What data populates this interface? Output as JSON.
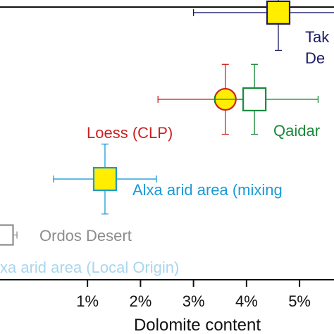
{
  "chart_data": {
    "type": "scatter",
    "title": "",
    "xlabel": "Dolomite content",
    "ylabel": "",
    "xlim": [
      -0.0065,
      0.0565
    ],
    "x_ticks": [
      {
        "value": 0.01,
        "label": "1%"
      },
      {
        "value": 0.02,
        "label": "2%"
      },
      {
        "value": 0.03,
        "label": "3%"
      },
      {
        "value": 0.04,
        "label": "4%"
      },
      {
        "value": 0.05,
        "label": "5%"
      }
    ],
    "grid": false,
    "points": [
      {
        "id": "taklimakan",
        "label_lines": [
          "Tak",
          "De"
        ],
        "x": 0.046,
        "y": 95.5,
        "x_err": [
          0.016,
          0.012
        ],
        "y_err": [
          13.5,
          13.5
        ],
        "marker": "square",
        "fill": "#ffee00",
        "stroke": "#1a1a66",
        "label_color": "#1a1a66"
      },
      {
        "id": "loess",
        "label_lines": [
          "Loess (CLP)"
        ],
        "x": 0.036,
        "y": 64.5,
        "x_err": [
          0.0127,
          0.0043
        ],
        "y_err": [
          12.5,
          12.5
        ],
        "marker": "circle",
        "fill": "#ffee00",
        "stroke": "#cc2222",
        "label_color": "#cc2222"
      },
      {
        "id": "qaidam",
        "label_lines": [
          "Qaidar"
        ],
        "x": 0.0415,
        "y": 64.5,
        "x_err": [
          0.0075,
          0.012
        ],
        "y_err": [
          12.5,
          12.5
        ],
        "marker": "square",
        "fill": "#ffffff",
        "stroke": "#1a8a3a",
        "label_color": "#1a8a3a"
      },
      {
        "id": "alxa_mixing",
        "label_lines": [
          "Alxa arid area (mixing"
        ],
        "x": 0.0133,
        "y": 36,
        "x_err": [
          0.0097,
          0.0097
        ],
        "y_err": [
          12.5,
          12.5
        ],
        "marker": "square",
        "fill": "#ffee00",
        "stroke": "#1a9ad6",
        "label_color": "#1a9ad6"
      },
      {
        "id": "ordos",
        "label_lines": [
          "Ordos Desert"
        ],
        "x": -0.0059,
        "y": 16,
        "x_err": [
          0.001,
          0.0026
        ],
        "y_err": [
          3.5,
          3.5
        ],
        "marker": "square",
        "fill": "#ffffff",
        "stroke": "#8c8c8c",
        "label_color": "#8c8c8c"
      },
      {
        "id": "alxa_local",
        "label_lines": [
          "xa arid area (Local Origin)"
        ],
        "x": null,
        "y": null,
        "marker": "none",
        "label_color": "#a8d6ee"
      }
    ]
  }
}
